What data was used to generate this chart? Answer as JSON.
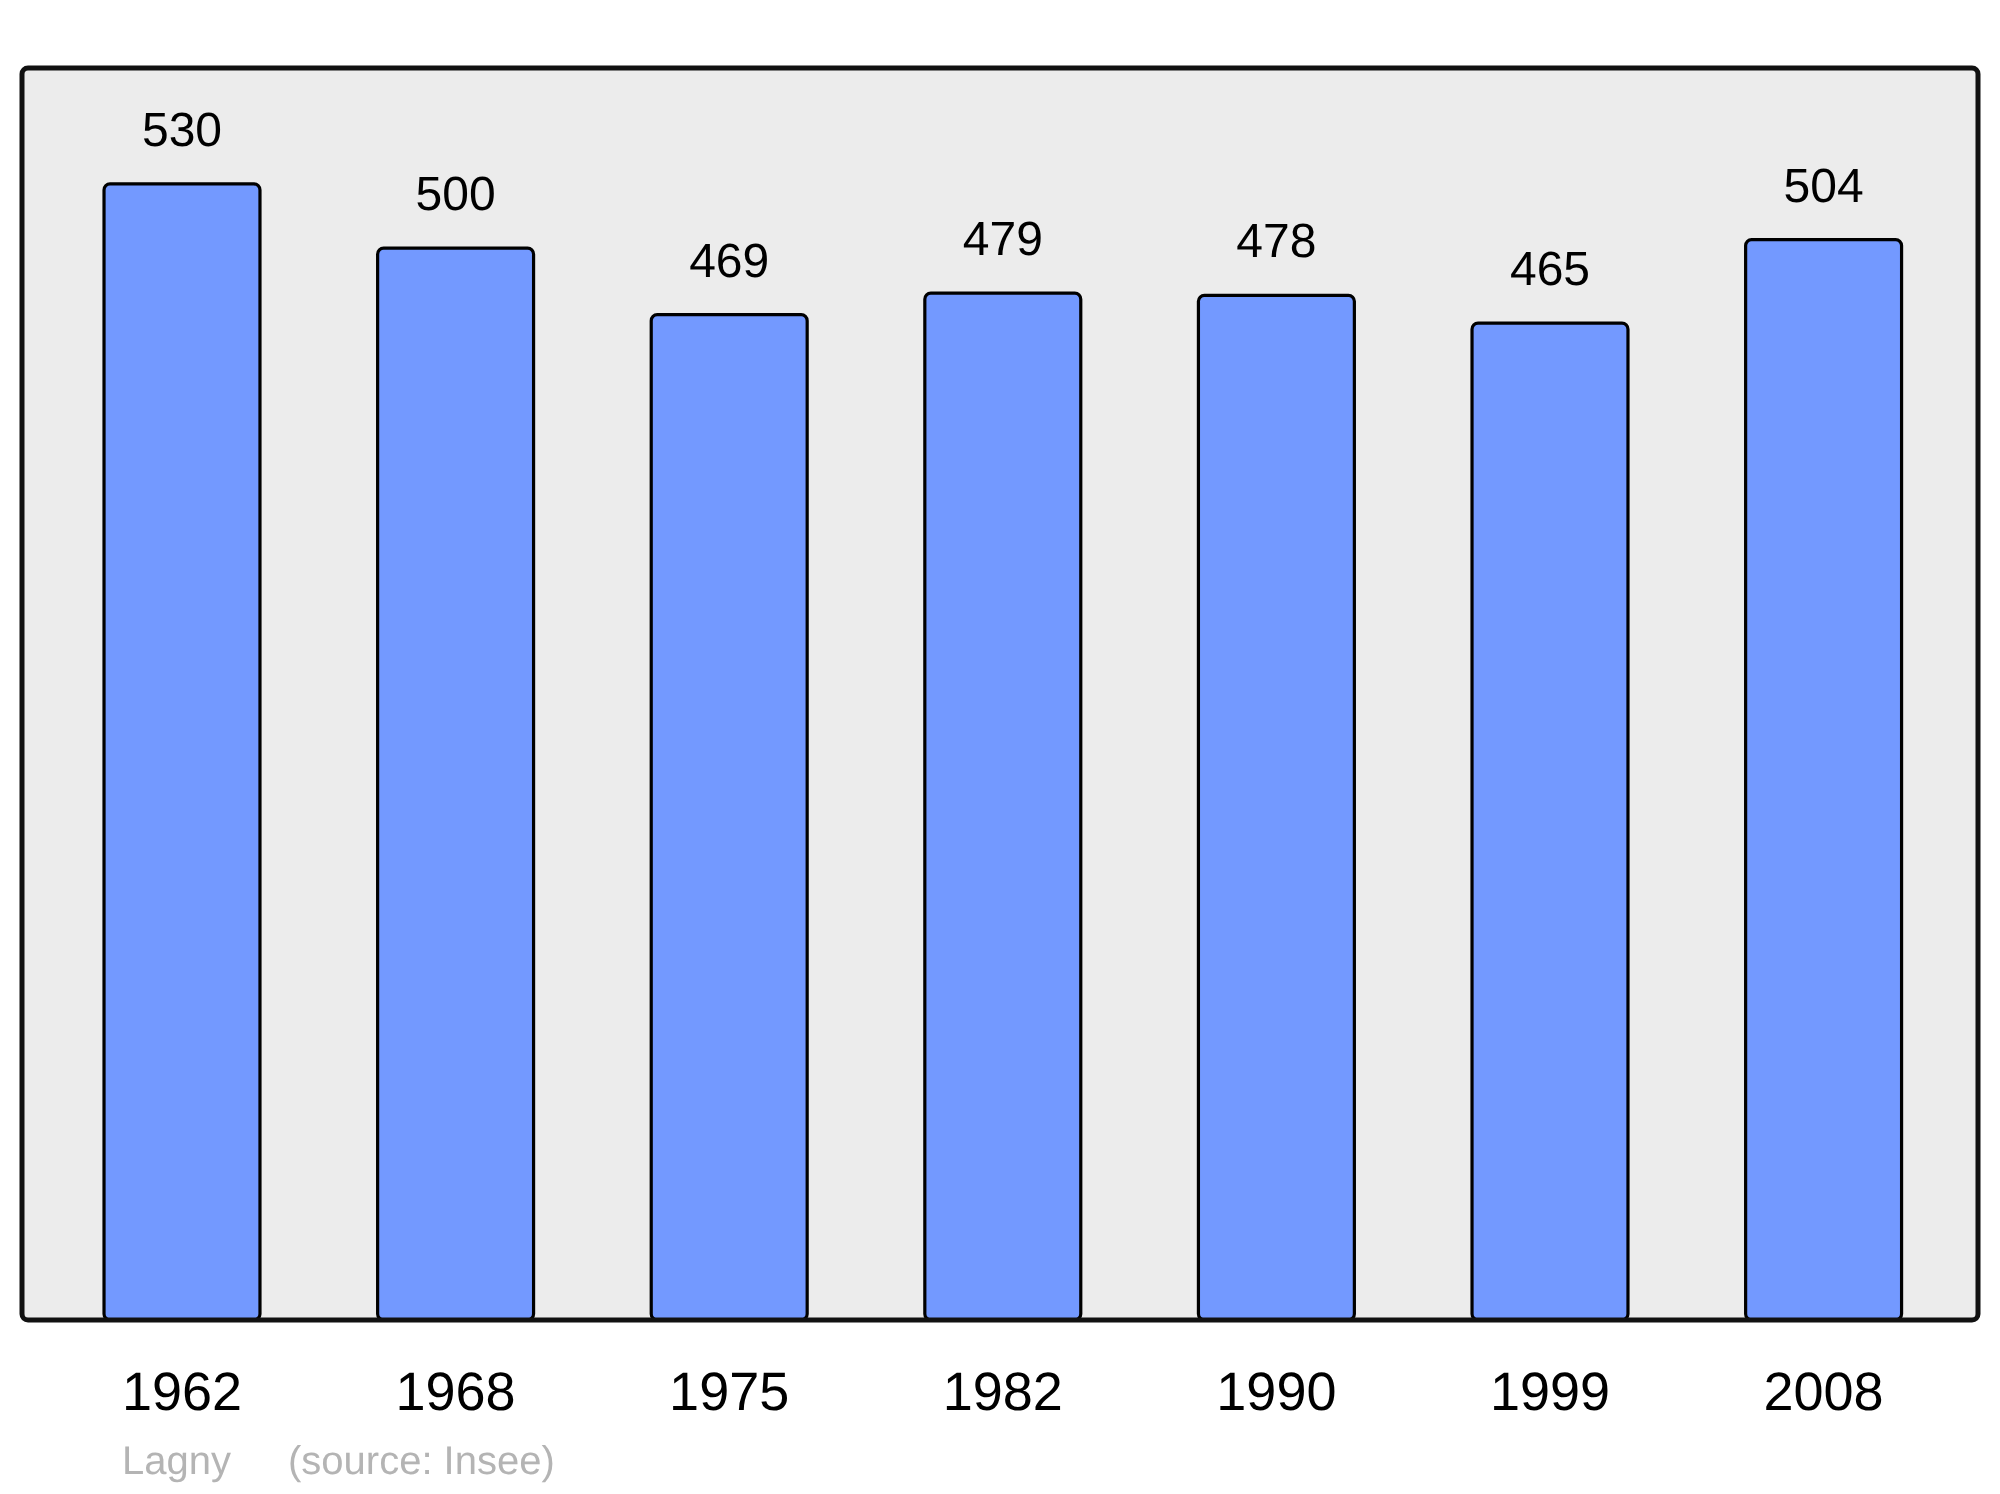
{
  "chart_data": {
    "type": "bar",
    "title": "Lagny",
    "annotations": [
      "(source: Insee)"
    ],
    "categories": [
      "1962",
      "1968",
      "1975",
      "1982",
      "1990",
      "1999",
      "2008"
    ],
    "values": [
      530,
      500,
      469,
      479,
      478,
      465,
      504
    ],
    "color": "#7399ff",
    "data_labels": true
  }
}
